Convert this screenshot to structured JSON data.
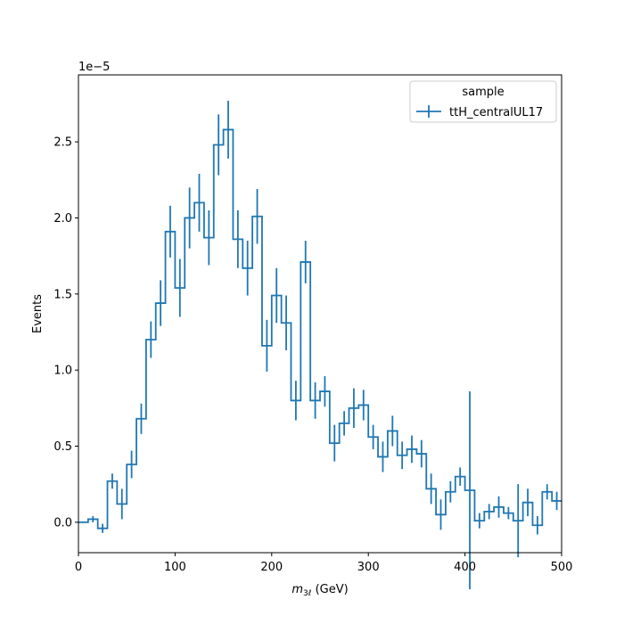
{
  "chart_data": {
    "type": "histogram",
    "title": "",
    "xlabel_main": "m",
    "xlabel_sub": "3ℓ",
    "xlabel_unit": " (GeV)",
    "ylabel": "Events",
    "y_exponent_label": "1e−5",
    "y_scale": 1e-05,
    "xlim": [
      0,
      500
    ],
    "ylim": [
      -0.2,
      2.94
    ],
    "x_ticks": [
      0,
      100,
      200,
      300,
      400,
      500
    ],
    "x_tick_labels": [
      "0",
      "100",
      "200",
      "300",
      "400",
      "500"
    ],
    "y_ticks": [
      0.0,
      0.5,
      1.0,
      1.5,
      2.0,
      2.5
    ],
    "y_tick_labels": [
      "0.0",
      "0.5",
      "1.0",
      "1.5",
      "2.0",
      "2.5"
    ],
    "grid": false,
    "legend": {
      "title": "sample",
      "placement": "top-right",
      "entries": [
        "ttH_centralUL17"
      ]
    },
    "colors": {
      "series": "#1f77b4"
    },
    "bin_edges": [
      0,
      10,
      20,
      30,
      40,
      50,
      60,
      70,
      80,
      90,
      100,
      110,
      120,
      130,
      140,
      150,
      160,
      170,
      180,
      190,
      200,
      210,
      220,
      230,
      240,
      250,
      260,
      270,
      280,
      290,
      300,
      310,
      320,
      330,
      340,
      350,
      360,
      370,
      380,
      390,
      400,
      410,
      420,
      430,
      440,
      450,
      460,
      470,
      480,
      490,
      500
    ],
    "series": [
      {
        "name": "ttH_centralUL17",
        "values": [
          0.0,
          0.02,
          -0.04,
          0.27,
          0.12,
          0.38,
          0.68,
          1.2,
          1.44,
          1.91,
          1.54,
          2.0,
          2.1,
          1.87,
          2.48,
          2.58,
          1.86,
          1.67,
          2.01,
          1.16,
          1.49,
          1.31,
          0.8,
          1.71,
          0.8,
          0.86,
          0.52,
          0.65,
          0.75,
          0.77,
          0.56,
          0.43,
          0.6,
          0.44,
          0.48,
          0.45,
          0.22,
          0.05,
          0.2,
          0.3,
          0.21,
          0.01,
          0.07,
          0.1,
          0.06,
          0.01,
          0.13,
          -0.02,
          0.2,
          0.14
        ],
        "errors": [
          0.0,
          0.02,
          0.03,
          0.05,
          0.1,
          0.09,
          0.1,
          0.12,
          0.15,
          0.17,
          0.19,
          0.2,
          0.19,
          0.18,
          0.2,
          0.19,
          0.19,
          0.18,
          0.18,
          0.17,
          0.18,
          0.18,
          0.13,
          0.14,
          0.12,
          0.1,
          0.12,
          0.08,
          0.13,
          0.1,
          0.08,
          0.1,
          0.1,
          0.09,
          0.09,
          0.09,
          0.1,
          0.1,
          0.07,
          0.06,
          0.65,
          0.05,
          0.05,
          0.07,
          0.04,
          0.24,
          0.09,
          0.06,
          0.05,
          0.06
        ]
      }
    ]
  }
}
